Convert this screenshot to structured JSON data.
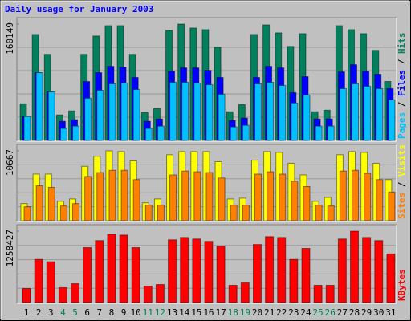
{
  "title": "Daily usage for January 2003",
  "legend_separator": " / ",
  "chart_data": [
    {
      "type": "bar",
      "ylim": [
        0,
        160149
      ],
      "yticks": [
        160149
      ],
      "series": [
        {
          "name": "Hits",
          "color": "#00805c",
          "values": [
            50460,
            145890,
            118470,
            35100,
            40590,
            118470,
            143700,
            157960,
            157960,
            118470,
            38390,
            43880,
            151380,
            160149,
            154670,
            152470,
            128340,
            39490,
            49360,
            145890,
            159050,
            148090,
            129440,
            146990,
            39490,
            41680,
            157960,
            152470,
            146990,
            123950,
            81170
          ]
        },
        {
          "name": "Files",
          "color": "#0000ff",
          "values": [
            32910,
            93240,
            66910,
            26330,
            28520,
            81170,
            93240,
            102010,
            100910,
            86660,
            26330,
            29620,
            95430,
            99820,
            99820,
            96530,
            86660,
            27420,
            30710,
            86660,
            102010,
            99820,
            65810,
            87750,
            29620,
            29620,
            94330,
            104210,
            95430,
            91040,
            71300
          ]
        },
        {
          "name": "Pages",
          "color": "#00c0ff",
          "values": [
            32910,
            93240,
            66910,
            16450,
            19740,
            58140,
            69100,
            77880,
            78980,
            70200,
            16450,
            19740,
            80070,
            80070,
            78980,
            76780,
            63620,
            18650,
            20840,
            77880,
            80070,
            75690,
            51550,
            62520,
            19740,
            19740,
            71300,
            77880,
            74590,
            71300,
            55940
          ]
        }
      ]
    },
    {
      "type": "bar",
      "ylim": [
        0,
        10667
      ],
      "yticks": [
        10667
      ],
      "series": [
        {
          "name": "Visits",
          "color": "#ffff00",
          "values": [
            2610,
            7110,
            7110,
            2960,
            3320,
            8300,
            9840,
            10667,
            10550,
            9130,
            2730,
            3320,
            10070,
            10550,
            10550,
            10550,
            9010,
            3320,
            3440,
            9240,
            10550,
            10430,
            8770,
            6990,
            2960,
            3560,
            10070,
            10550,
            10430,
            8770,
            6280
          ]
        },
        {
          "name": "Sites",
          "color": "#ff8000",
          "values": [
            2130,
            5330,
            5100,
            2250,
            2610,
            6750,
            7350,
            7700,
            7700,
            6280,
            2370,
            2370,
            6990,
            7580,
            7470,
            7350,
            6520,
            2370,
            2370,
            7110,
            7470,
            7110,
            6040,
            5210,
            2370,
            2250,
            7580,
            7700,
            7230,
            6280,
            4380
          ]
        }
      ]
    },
    {
      "type": "bar",
      "ylim": [
        0,
        1258427
      ],
      "yticks": [
        1258427
      ],
      "categories": [
        "1",
        "2",
        "3",
        "4",
        "5",
        "6",
        "7",
        "8",
        "9",
        "10",
        "11",
        "12",
        "13",
        "14",
        "15",
        "16",
        "17",
        "18",
        "19",
        "20",
        "21",
        "22",
        "23",
        "24",
        "25",
        "26",
        "27",
        "28",
        "29",
        "30",
        "31"
      ],
      "category_colors": [
        "#000",
        "#000",
        "#000",
        "#00805c",
        "#00805c",
        "#000",
        "#000",
        "#000",
        "#000",
        "#000",
        "#00805c",
        "#00805c",
        "#000",
        "#000",
        "#000",
        "#000",
        "#000",
        "#00805c",
        "#00805c",
        "#000",
        "#000",
        "#000",
        "#000",
        "#000",
        "#00805c",
        "#00805c",
        "#000",
        "#000",
        "#000",
        "#000",
        "#000"
      ],
      "series": [
        {
          "name": "KBytes",
          "color": "#ff0000",
          "values": [
            248920,
            760600,
            719110,
            262750,
            331900,
            968030,
            1092490,
            1203120,
            1189290,
            968030,
            290410,
            318070,
            1106320,
            1147810,
            1120150,
            1078660,
            995690,
            304240,
            345730,
            1023350,
            1161640,
            1147810,
            760600,
            954200,
            304240,
            304240,
            1120150,
            1258427,
            1147810,
            1092490,
            857400
          ]
        }
      ]
    }
  ]
}
